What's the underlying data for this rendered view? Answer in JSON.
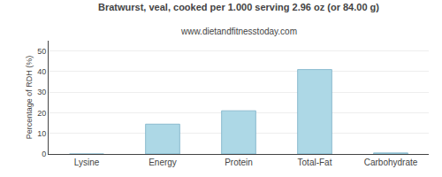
{
  "chart_data": {
    "type": "bar",
    "title": "Bratwurst, veal, cooked per 1.000 serving 2.96 oz (or 84.00 g)",
    "subtitle": "www.dietandfitnesstoday.com",
    "categories": [
      "Lysine",
      "Energy",
      "Protein",
      "Total-Fat",
      "Carbohydrate"
    ],
    "values": [
      0,
      14.5,
      21,
      41,
      0.5
    ],
    "color": "#add8e6",
    "ylabel": "Percentage of RDH (%)",
    "ylim": [
      0,
      55
    ],
    "yticks": [
      0,
      10,
      20,
      30,
      40,
      50
    ],
    "grid": true
  }
}
